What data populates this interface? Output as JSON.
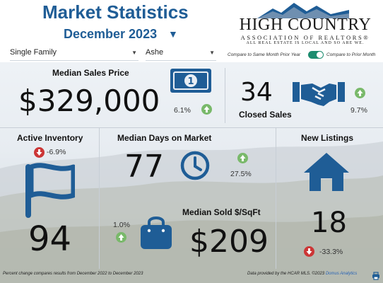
{
  "header": {
    "title": "Market Statistics",
    "period": "December 2023",
    "period_caret": "▼"
  },
  "logo": {
    "name": "HIGH COUNTRY",
    "association": "ASSOCIATION OF REALTORS®",
    "tagline": "ALL REAL ESTATE IS LOCAL AND SO ARE WE."
  },
  "filters": {
    "property_type": "Single Family",
    "county": "Ashe",
    "caret": "▼"
  },
  "comparison": {
    "left_label": "Compare to Same Month Prior Year",
    "right_label": "Compare to Prior Month",
    "toggle_on": true
  },
  "stats": {
    "median_sales_price": {
      "label": "Median Sales Price",
      "value": "$329,000",
      "change": "6.1%",
      "direction": "up"
    },
    "closed_sales": {
      "label": "Closed Sales",
      "value": "34",
      "change": "9.7%",
      "direction": "up"
    },
    "active_inventory": {
      "label": "Active Inventory",
      "value": "94",
      "change": "-6.9%",
      "direction": "down"
    },
    "median_days_on_market": {
      "label": "Median Days on Market",
      "value": "77",
      "change": "27.5%",
      "direction": "up"
    },
    "median_sold_sqft": {
      "label": "Median Sold $/SqFt",
      "value": "$209",
      "change": "1.0%",
      "direction": "up"
    },
    "new_listings": {
      "label": "New Listings",
      "value": "18",
      "change": "-33.3%",
      "direction": "down"
    }
  },
  "icons": {
    "money": "money-bill-icon",
    "handshake": "handshake-icon",
    "flag": "flag-icon",
    "clock": "clock-icon",
    "bag": "shopping-bag-icon",
    "house": "house-icon",
    "print": "print-icon"
  },
  "colors": {
    "brand_blue": "#1f5d96",
    "icon_blue": "#1f5d96",
    "up_green": "#79b96a",
    "down_red": "#cc3636",
    "toggle_green": "#1c8c6f"
  },
  "footer": {
    "note": "Percent change compares results from December 2022 to December 2023",
    "source_prefix": "Data provided by the HCAR MLS. ©2023",
    "source_link": "Domus Analytics"
  }
}
